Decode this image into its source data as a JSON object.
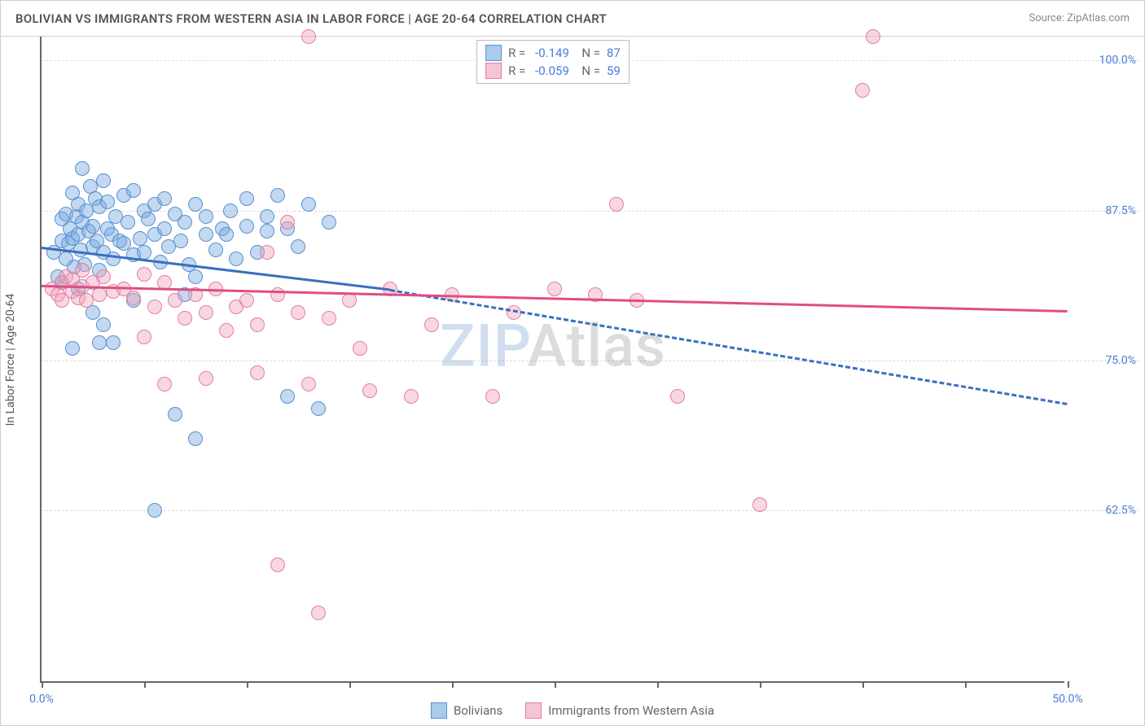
{
  "header": {
    "title": "BOLIVIAN VS IMMIGRANTS FROM WESTERN ASIA IN LABOR FORCE | AGE 20-64 CORRELATION CHART",
    "source": "Source: ZipAtlas.com"
  },
  "chart": {
    "type": "scatter",
    "ylabel": "In Labor Force | Age 20-64",
    "xlim": [
      0,
      50
    ],
    "ylim": [
      48,
      102
    ],
    "xtick_positions": [
      0,
      5,
      10,
      15,
      20,
      25,
      30,
      35,
      40,
      45,
      50
    ],
    "xtick_labels": {
      "0": "0.0%",
      "50": "50.0%"
    },
    "ytick_positions": [
      62.5,
      75.0,
      87.5,
      100.0
    ],
    "ytick_labels": [
      "62.5%",
      "75.0%",
      "87.5%",
      "100.0%"
    ],
    "grid_color": "#dddddd",
    "axis_color": "#666666",
    "background_color": "#ffffff",
    "marker_radius": 9,
    "marker_border_width": 1.2,
    "watermark": "ZIPAtlas",
    "series": [
      {
        "name": "Bolivians",
        "fill": "rgba(120, 170, 225, 0.45)",
        "stroke": "#5b8fd0",
        "legend_swatch_fill": "#a9cbec",
        "legend_swatch_border": "#5b8fd0",
        "r_value": "-0.149",
        "n_value": "87",
        "regression": {
          "x1": 0,
          "y1": 84.5,
          "x2": 17,
          "y2": 81.0,
          "extend_x2": 50,
          "extend_y2": 71.5,
          "color": "#3a6fc0",
          "width": 3,
          "dash_extend": true
        },
        "points": [
          [
            0.6,
            84.0
          ],
          [
            0.8,
            82.0
          ],
          [
            1.0,
            86.8
          ],
          [
            1.0,
            85.0
          ],
          [
            1.2,
            83.5
          ],
          [
            1.2,
            87.2
          ],
          [
            1.3,
            84.8
          ],
          [
            1.4,
            86.0
          ],
          [
            1.5,
            89.0
          ],
          [
            1.5,
            85.2
          ],
          [
            1.6,
            82.8
          ],
          [
            1.7,
            87.0
          ],
          [
            1.8,
            85.5
          ],
          [
            1.8,
            88.0
          ],
          [
            1.9,
            84.2
          ],
          [
            2.0,
            86.5
          ],
          [
            2.0,
            91.0
          ],
          [
            2.1,
            83.0
          ],
          [
            2.2,
            87.5
          ],
          [
            2.3,
            85.8
          ],
          [
            2.4,
            89.5
          ],
          [
            2.5,
            84.5
          ],
          [
            2.5,
            86.2
          ],
          [
            2.6,
            88.5
          ],
          [
            2.7,
            85.0
          ],
          [
            2.8,
            82.5
          ],
          [
            2.8,
            87.8
          ],
          [
            3.0,
            90.0
          ],
          [
            3.0,
            84.0
          ],
          [
            3.2,
            86.0
          ],
          [
            3.2,
            88.2
          ],
          [
            3.4,
            85.5
          ],
          [
            3.5,
            83.5
          ],
          [
            3.6,
            87.0
          ],
          [
            3.8,
            85.0
          ],
          [
            4.0,
            88.8
          ],
          [
            4.0,
            84.8
          ],
          [
            4.2,
            86.5
          ],
          [
            4.5,
            83.8
          ],
          [
            4.5,
            89.2
          ],
          [
            4.8,
            85.2
          ],
          [
            5.0,
            87.5
          ],
          [
            5.0,
            84.0
          ],
          [
            5.2,
            86.8
          ],
          [
            5.5,
            85.5
          ],
          [
            5.5,
            88.0
          ],
          [
            5.8,
            83.2
          ],
          [
            6.0,
            86.0
          ],
          [
            6.0,
            88.5
          ],
          [
            6.2,
            84.5
          ],
          [
            6.5,
            87.2
          ],
          [
            6.8,
            85.0
          ],
          [
            7.0,
            80.5
          ],
          [
            7.0,
            86.5
          ],
          [
            7.2,
            83.0
          ],
          [
            7.5,
            82.0
          ],
          [
            7.5,
            88.0
          ],
          [
            8.0,
            85.5
          ],
          [
            8.0,
            87.0
          ],
          [
            8.5,
            84.2
          ],
          [
            8.8,
            86.0
          ],
          [
            9.0,
            85.5
          ],
          [
            9.2,
            87.5
          ],
          [
            9.5,
            83.5
          ],
          [
            10.0,
            86.2
          ],
          [
            10.0,
            88.5
          ],
          [
            10.5,
            84.0
          ],
          [
            11.0,
            85.8
          ],
          [
            11.0,
            87.0
          ],
          [
            11.5,
            88.8
          ],
          [
            12.0,
            86.0
          ],
          [
            12.0,
            72.0
          ],
          [
            12.5,
            84.5
          ],
          [
            13.0,
            88.0
          ],
          [
            13.5,
            71.0
          ],
          [
            14.0,
            86.5
          ],
          [
            1.5,
            76.0
          ],
          [
            2.5,
            79.0
          ],
          [
            3.5,
            76.5
          ],
          [
            1.8,
            81.0
          ],
          [
            5.5,
            62.5
          ],
          [
            6.5,
            70.5
          ],
          [
            7.5,
            68.5
          ],
          [
            1.0,
            81.5
          ],
          [
            3.0,
            78.0
          ],
          [
            4.5,
            80.0
          ],
          [
            2.8,
            76.5
          ]
        ]
      },
      {
        "name": "Immigrants from Western Asia",
        "fill": "rgba(240, 160, 185, 0.42)",
        "stroke": "#e07fa0",
        "legend_swatch_fill": "#f5c4d2",
        "legend_swatch_border": "#e07fa0",
        "r_value": "-0.059",
        "n_value": "59",
        "regression": {
          "x1": 0,
          "y1": 81.3,
          "x2": 50,
          "y2": 79.2,
          "color": "#e04d82",
          "width": 3,
          "dash_extend": false
        },
        "points": [
          [
            0.5,
            81.0
          ],
          [
            0.8,
            80.5
          ],
          [
            1.0,
            81.5
          ],
          [
            1.0,
            80.0
          ],
          [
            1.2,
            82.0
          ],
          [
            1.5,
            80.8
          ],
          [
            1.5,
            81.8
          ],
          [
            1.8,
            80.2
          ],
          [
            2.0,
            81.2
          ],
          [
            2.0,
            82.5
          ],
          [
            2.2,
            80.0
          ],
          [
            2.5,
            81.5
          ],
          [
            2.8,
            80.5
          ],
          [
            3.0,
            82.0
          ],
          [
            3.5,
            80.8
          ],
          [
            4.0,
            81.0
          ],
          [
            4.5,
            80.2
          ],
          [
            5.0,
            82.2
          ],
          [
            5.5,
            79.5
          ],
          [
            6.0,
            81.5
          ],
          [
            6.5,
            80.0
          ],
          [
            7.0,
            78.5
          ],
          [
            7.5,
            80.5
          ],
          [
            8.0,
            79.0
          ],
          [
            8.5,
            81.0
          ],
          [
            9.0,
            77.5
          ],
          [
            9.5,
            79.5
          ],
          [
            10.0,
            80.0
          ],
          [
            10.5,
            78.0
          ],
          [
            11.0,
            84.0
          ],
          [
            11.5,
            80.5
          ],
          [
            12.0,
            86.5
          ],
          [
            12.5,
            79.0
          ],
          [
            13.0,
            73.0
          ],
          [
            14.0,
            78.5
          ],
          [
            15.0,
            80.0
          ],
          [
            16.0,
            72.5
          ],
          [
            17.0,
            81.0
          ],
          [
            18.0,
            72.0
          ],
          [
            19.0,
            78.0
          ],
          [
            20.0,
            80.5
          ],
          [
            22.0,
            72.0
          ],
          [
            23.0,
            79.0
          ],
          [
            25.0,
            81.0
          ],
          [
            27.0,
            80.5
          ],
          [
            28.0,
            88.0
          ],
          [
            29.0,
            80.0
          ],
          [
            31.0,
            72.0
          ],
          [
            35.0,
            63.0
          ],
          [
            40.0,
            97.5
          ],
          [
            13.0,
            102.0
          ],
          [
            13.5,
            54.0
          ],
          [
            11.5,
            58.0
          ],
          [
            40.5,
            102.0
          ],
          [
            8.0,
            73.5
          ],
          [
            6.0,
            73.0
          ],
          [
            10.5,
            74.0
          ],
          [
            15.5,
            76.0
          ],
          [
            5.0,
            77.0
          ]
        ]
      }
    ],
    "legend_bottom": [
      {
        "label": "Bolivians",
        "fill": "#a9cbec",
        "border": "#5b8fd0"
      },
      {
        "label": "Immigrants from Western Asia",
        "fill": "#f5c4d2",
        "border": "#e07fa0"
      }
    ]
  }
}
